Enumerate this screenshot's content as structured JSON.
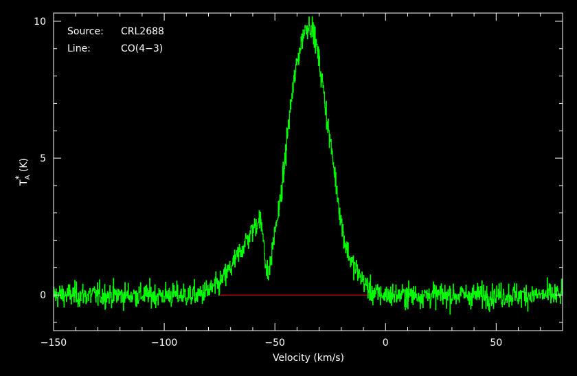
{
  "chart_data": {
    "type": "line",
    "title": "",
    "xlabel": "Velocity (km/s)",
    "ylabel": {
      "symbol": "T",
      "superscript": "*",
      "subscript": "A",
      "unit": "(K)"
    },
    "xlim": [
      -150,
      80
    ],
    "ylim": [
      -1.3,
      10.3
    ],
    "xticks": [
      -150,
      -100,
      -50,
      0,
      50
    ],
    "xtick_labels": [
      "−150",
      "−100",
      "−50",
      "0",
      "50"
    ],
    "yticks": [
      0,
      5,
      10
    ],
    "ytick_labels": [
      "0",
      "5",
      "10"
    ],
    "grid": false,
    "annotations": {
      "source_label": "Source:",
      "source_value": "CRL2688",
      "line_label": "Line:",
      "line_value": "CO(4−3)"
    },
    "series": [
      {
        "color": "#00ff00",
        "noise_rms": 0.22,
        "x": [
          -150,
          -85,
          -80,
          -75,
          -70,
          -65,
          -60,
          -57,
          -55,
          -54,
          -53,
          -52,
          -50,
          -48,
          -46,
          -44,
          -42,
          -40,
          -38,
          -36,
          -34,
          -32,
          -30,
          -28,
          -26,
          -24,
          -22,
          -20,
          -18,
          -16,
          -14,
          -12,
          -10,
          -8,
          -6,
          -4,
          0,
          80
        ],
        "y": [
          0,
          0,
          0.15,
          0.4,
          1.0,
          1.7,
          2.4,
          2.8,
          2.0,
          0.9,
          0.7,
          1.2,
          2.4,
          3.2,
          4.5,
          6.2,
          7.5,
          8.5,
          9.3,
          9.8,
          9.9,
          9.4,
          8.5,
          7.4,
          6.1,
          5.0,
          3.8,
          2.6,
          1.8,
          1.3,
          1.0,
          0.75,
          0.5,
          0.25,
          0.1,
          0.03,
          0,
          0
        ]
      }
    ],
    "baseline": {
      "color": "#ff0000",
      "x_start": -75,
      "x_end": -7,
      "y": 0
    },
    "colors": {
      "background": "#000000",
      "axes": "#ffffff",
      "spectrum": "#00ff00",
      "baseline": "#ff0000"
    }
  }
}
